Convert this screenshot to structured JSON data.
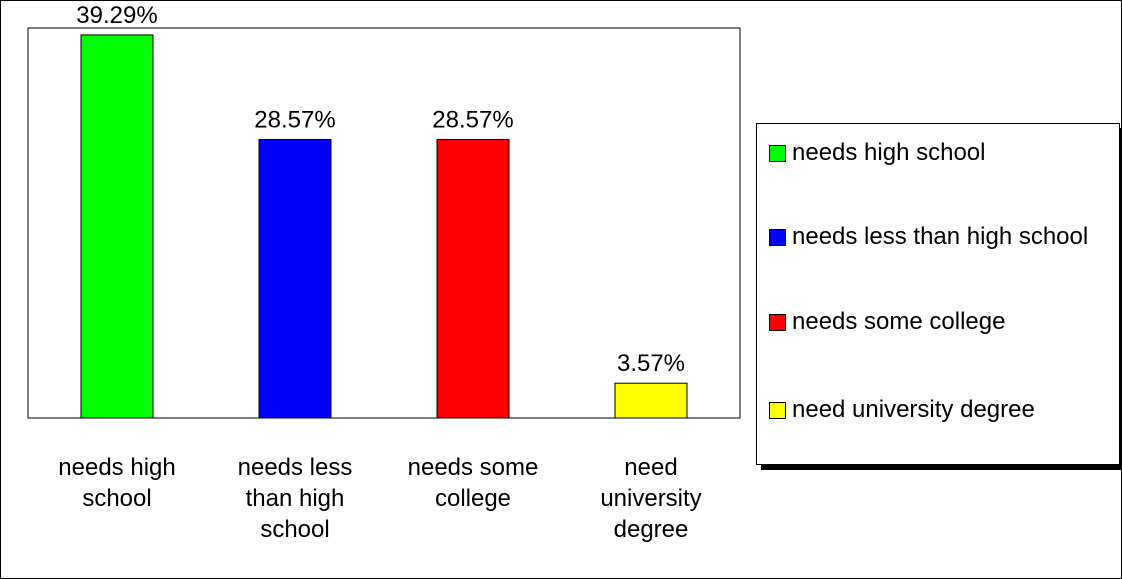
{
  "chart_data": {
    "type": "bar",
    "title": "",
    "xlabel": "",
    "ylabel": "",
    "categories": [
      "needs high school",
      "needs less than high school",
      "needs some college",
      "need university degree"
    ],
    "values": [
      39.29,
      28.57,
      28.57,
      3.57
    ],
    "data_labels": [
      "39.29%",
      "28.57%",
      "28.57%",
      "3.57%"
    ],
    "ylim": [
      0,
      40
    ],
    "grid": false,
    "legend": {
      "placement": "right",
      "entries": [
        "needs high school",
        "needs less than high school",
        "needs some college",
        "need university degree"
      ]
    },
    "colors": [
      "#00ff00",
      "#0000ff",
      "#ff0000",
      "#ffff00"
    ]
  }
}
